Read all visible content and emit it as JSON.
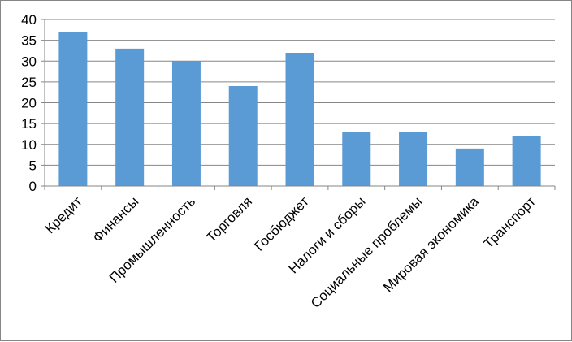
{
  "chart_data": {
    "type": "bar",
    "title": "",
    "xlabel": "",
    "ylabel": "",
    "categories": [
      "Кредит",
      "Финансы",
      "Промышленность",
      "Торговля",
      "Госбюджет",
      "Налоги и сборы",
      "Социальные проблемы",
      "Мировая экономика",
      "Транспорт"
    ],
    "values": [
      37,
      33,
      30,
      24,
      32,
      13,
      13,
      9,
      12
    ],
    "ylim": [
      0,
      40
    ],
    "yticks": [
      "0",
      "5",
      "10",
      "15",
      "20",
      "25",
      "30",
      "35",
      "40"
    ],
    "grid": true,
    "legend": "none",
    "colors": {
      "bar": "#5B9BD5",
      "grid": "#868686",
      "axis": "#868686"
    }
  }
}
